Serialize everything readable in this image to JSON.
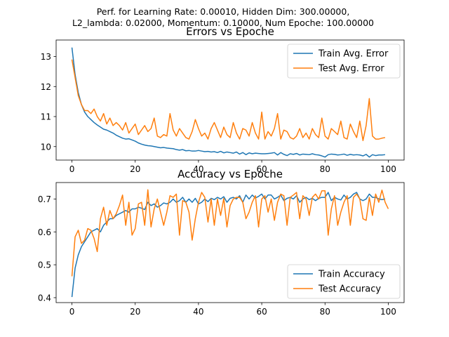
{
  "figure": {
    "suptitle_line1": "Perf. for Learning Rate: 0.00010, Hidden Dim: 300.00000,",
    "suptitle_line2": "L2_lambda: 0.02000, Momentum: 0.10000, Num Epoche: 100.00000"
  },
  "colors": {
    "train": "#1f77b4",
    "test": "#ff7f0e"
  },
  "chart_data": [
    {
      "type": "line",
      "title": "Errors vs Epoche",
      "xlabel": "",
      "ylabel": "",
      "xlim": [
        -5,
        105
      ],
      "ylim": [
        9.55,
        13.55
      ],
      "xticks": [
        0,
        20,
        40,
        60,
        80,
        100
      ],
      "yticks": [
        10,
        11,
        12,
        13
      ],
      "legend": "top-right",
      "grid": false,
      "series": [
        {
          "name": "Train Avg. Error",
          "color": "#1f77b4",
          "values": [
            13.3,
            12.4,
            11.8,
            11.4,
            11.15,
            11.0,
            10.9,
            10.8,
            10.72,
            10.65,
            10.58,
            10.55,
            10.5,
            10.45,
            10.38,
            10.33,
            10.28,
            10.25,
            10.26,
            10.22,
            10.18,
            10.12,
            10.08,
            10.05,
            10.03,
            10.02,
            10.0,
            9.98,
            9.96,
            9.97,
            9.95,
            9.94,
            9.93,
            9.9,
            9.88,
            9.9,
            9.86,
            9.87,
            9.85,
            9.85,
            9.87,
            9.85,
            9.83,
            9.84,
            9.82,
            9.83,
            9.8,
            9.84,
            9.79,
            9.82,
            9.8,
            9.78,
            9.82,
            9.75,
            9.8,
            9.73,
            9.79,
            9.76,
            9.78,
            9.77,
            9.76,
            9.76,
            9.77,
            9.78,
            9.8,
            9.72,
            9.8,
            9.74,
            9.7,
            9.76,
            9.74,
            9.77,
            9.72,
            9.75,
            9.74,
            9.73,
            9.76,
            9.73,
            9.72,
            9.69,
            9.65,
            9.73,
            9.75,
            9.74,
            9.72,
            9.73,
            9.75,
            9.71,
            9.74,
            9.72,
            9.73,
            9.72,
            9.69,
            9.74,
            9.65,
            9.73,
            9.7,
            9.72,
            9.72,
            9.73
          ]
        },
        {
          "name": "Test Avg. Error",
          "color": "#ff7f0e",
          "values": [
            12.9,
            12.3,
            11.7,
            11.4,
            11.2,
            11.2,
            11.1,
            11.25,
            11.0,
            10.85,
            11.1,
            10.75,
            10.95,
            10.7,
            10.8,
            10.7,
            10.55,
            10.8,
            10.45,
            10.6,
            10.75,
            10.4,
            10.55,
            10.7,
            10.5,
            10.6,
            10.95,
            10.35,
            10.3,
            10.4,
            10.35,
            11.1,
            10.55,
            10.35,
            10.6,
            10.45,
            10.3,
            10.25,
            10.5,
            10.9,
            10.6,
            10.35,
            10.45,
            10.25,
            10.6,
            10.8,
            10.55,
            10.3,
            10.65,
            10.4,
            10.3,
            10.8,
            10.45,
            10.25,
            10.6,
            10.55,
            10.35,
            10.8,
            10.45,
            10.25,
            11.15,
            10.25,
            10.5,
            10.35,
            10.6,
            11.1,
            10.25,
            10.55,
            10.5,
            10.3,
            10.25,
            10.35,
            10.6,
            10.3,
            10.45,
            10.25,
            10.6,
            10.4,
            10.3,
            10.95,
            10.35,
            10.25,
            10.6,
            10.5,
            10.4,
            10.85,
            10.3,
            10.25,
            10.75,
            10.5,
            10.3,
            10.85,
            10.2,
            10.7,
            11.6,
            10.35,
            10.25,
            10.25,
            10.28,
            10.3
          ]
        }
      ]
    },
    {
      "type": "line",
      "title": "Accuracy vs Epoche",
      "xlabel": "",
      "ylabel": "",
      "xlim": [
        -5,
        105
      ],
      "ylim": [
        0.385,
        0.75
      ],
      "xticks": [
        0,
        20,
        40,
        60,
        80,
        100
      ],
      "yticks": [
        0.4,
        0.5,
        0.6,
        0.7
      ],
      "yticklabels": [
        "0.4",
        "0.5",
        "0.6",
        "0.7"
      ],
      "legend": "bottom-right",
      "grid": false,
      "series": [
        {
          "name": "Train Accuracy",
          "color": "#1f77b4",
          "values": [
            0.402,
            0.49,
            0.53,
            0.555,
            0.57,
            0.585,
            0.6,
            0.605,
            0.61,
            0.6,
            0.62,
            0.63,
            0.64,
            0.64,
            0.65,
            0.655,
            0.66,
            0.665,
            0.66,
            0.67,
            0.67,
            0.675,
            0.672,
            0.668,
            0.69,
            0.68,
            0.685,
            0.675,
            0.68,
            0.688,
            0.685,
            0.69,
            0.7,
            0.69,
            0.695,
            0.705,
            0.69,
            0.7,
            0.69,
            0.702,
            0.685,
            0.69,
            0.7,
            0.692,
            0.702,
            0.698,
            0.705,
            0.7,
            0.707,
            0.69,
            0.702,
            0.705,
            0.7,
            0.71,
            0.69,
            0.712,
            0.7,
            0.712,
            0.703,
            0.708,
            0.715,
            0.7,
            0.712,
            0.712,
            0.7,
            0.705,
            0.712,
            0.695,
            0.702,
            0.705,
            0.7,
            0.71,
            0.69,
            0.7,
            0.705,
            0.698,
            0.702,
            0.695,
            0.702,
            0.705,
            0.705,
            0.72,
            0.695,
            0.705,
            0.7,
            0.697,
            0.712,
            0.7,
            0.705,
            0.715,
            0.72,
            0.7,
            0.695,
            0.7,
            0.715,
            0.705,
            0.705,
            0.7,
            0.698,
            0.7
          ]
        },
        {
          "name": "Test Accuracy",
          "color": "#ff7f0e",
          "values": [
            0.465,
            0.585,
            0.605,
            0.565,
            0.575,
            0.61,
            0.605,
            0.58,
            0.54,
            0.64,
            0.675,
            0.62,
            0.665,
            0.64,
            0.655,
            0.68,
            0.712,
            0.62,
            0.69,
            0.59,
            0.61,
            0.685,
            0.69,
            0.62,
            0.728,
            0.615,
            0.67,
            0.7,
            0.66,
            0.62,
            0.66,
            0.71,
            0.705,
            0.715,
            0.59,
            0.695,
            0.69,
            0.66,
            0.575,
            0.64,
            0.69,
            0.72,
            0.705,
            0.63,
            0.7,
            0.62,
            0.7,
            0.65,
            0.702,
            0.615,
            0.68,
            0.7,
            0.705,
            0.705,
            0.69,
            0.64,
            0.66,
            0.69,
            0.71,
            0.615,
            0.7,
            0.71,
            0.66,
            0.7,
            0.635,
            0.69,
            0.715,
            0.71,
            0.62,
            0.705,
            0.712,
            0.72,
            0.64,
            0.71,
            0.7,
            0.65,
            0.705,
            0.715,
            0.7,
            0.725,
            0.725,
            0.59,
            0.67,
            0.71,
            0.62,
            0.66,
            0.69,
            0.71,
            0.62,
            0.705,
            0.715,
            0.7,
            0.64,
            0.635,
            0.705,
            0.65,
            0.715,
            0.69,
            0.727,
            0.69,
            0.67
          ]
        }
      ]
    }
  ]
}
